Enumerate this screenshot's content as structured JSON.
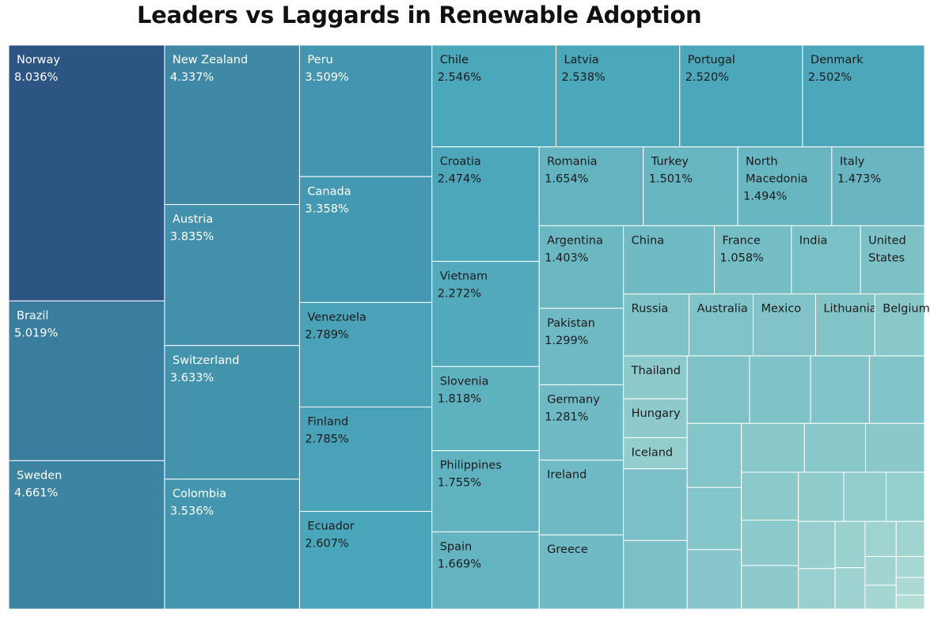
{
  "chart_data": {
    "type": "treemap",
    "title": "Leaders vs Laggards in Renewable Adoption",
    "color_scale": {
      "low": "#b1ddd5",
      "mid": "#4aa6ba",
      "high": "#2c5584"
    },
    "items": [
      {
        "name": "Norway",
        "value": 8.036,
        "value_label": "8.036%",
        "show_value": true
      },
      {
        "name": "Brazil",
        "value": 5.019,
        "value_label": "5.019%",
        "show_value": true
      },
      {
        "name": "Sweden",
        "value": 4.661,
        "value_label": "4.661%",
        "show_value": true
      },
      {
        "name": "New Zealand",
        "value": 4.337,
        "value_label": "4.337%",
        "show_value": true
      },
      {
        "name": "Austria",
        "value": 3.835,
        "value_label": "3.835%",
        "show_value": true
      },
      {
        "name": "Switzerland",
        "value": 3.633,
        "value_label": "3.633%",
        "show_value": true
      },
      {
        "name": "Colombia",
        "value": 3.536,
        "value_label": "3.536%",
        "show_value": true
      },
      {
        "name": "Peru",
        "value": 3.509,
        "value_label": "3.509%",
        "show_value": true
      },
      {
        "name": "Canada",
        "value": 3.358,
        "value_label": "3.358%",
        "show_value": true
      },
      {
        "name": "Venezuela",
        "value": 2.789,
        "value_label": "2.789%",
        "show_value": true
      },
      {
        "name": "Finland",
        "value": 2.785,
        "value_label": "2.785%",
        "show_value": true
      },
      {
        "name": "Ecuador",
        "value": 2.607,
        "value_label": "2.607%",
        "show_value": true
      },
      {
        "name": "Chile",
        "value": 2.546,
        "value_label": "2.546%",
        "show_value": true
      },
      {
        "name": "Latvia",
        "value": 2.538,
        "value_label": "2.538%",
        "show_value": true
      },
      {
        "name": "Portugal",
        "value": 2.52,
        "value_label": "2.520%",
        "show_value": true
      },
      {
        "name": "Denmark",
        "value": 2.502,
        "value_label": "2.502%",
        "show_value": true
      },
      {
        "name": "Croatia",
        "value": 2.474,
        "value_label": "2.474%",
        "show_value": true
      },
      {
        "name": "Vietnam",
        "value": 2.272,
        "value_label": "2.272%",
        "show_value": true
      },
      {
        "name": "Slovenia",
        "value": 1.818,
        "value_label": "1.818%",
        "show_value": true
      },
      {
        "name": "Philippines",
        "value": 1.755,
        "value_label": "1.755%",
        "show_value": true
      },
      {
        "name": "Spain",
        "value": 1.669,
        "value_label": "1.669%",
        "show_value": true
      },
      {
        "name": "Romania",
        "value": 1.654,
        "value_label": "1.654%",
        "show_value": true
      },
      {
        "name": "Turkey",
        "value": 1.501,
        "value_label": "1.501%",
        "show_value": true
      },
      {
        "name": "North Macedonia",
        "lines": [
          "North",
          "Macedonia"
        ],
        "value": 1.494,
        "value_label": "1.494%",
        "show_value": true
      },
      {
        "name": "Italy",
        "value": 1.473,
        "value_label": "1.473%",
        "show_value": true
      },
      {
        "name": "Argentina",
        "value": 1.403,
        "value_label": "1.403%",
        "show_value": true
      },
      {
        "name": "Pakistan",
        "value": 1.299,
        "value_label": "1.299%",
        "show_value": true
      },
      {
        "name": "Germany",
        "value": 1.281,
        "value_label": "1.281%",
        "show_value": true
      },
      {
        "name": "Ireland",
        "value": 1.27,
        "show_value": false
      },
      {
        "name": "Greece",
        "value": 1.26,
        "show_value": false
      },
      {
        "name": "China",
        "value": 1.25,
        "show_value": false
      },
      {
        "name": "France",
        "value": 1.058,
        "value_label": "1.058%",
        "show_value": true
      },
      {
        "name": "India",
        "value": 0.95,
        "show_value": false
      },
      {
        "name": "United States",
        "lines": [
          "United",
          "States"
        ],
        "value": 0.88,
        "show_value": false
      },
      {
        "name": "Russia",
        "value": 0.82,
        "show_value": false
      },
      {
        "name": "Australia",
        "value": 0.8,
        "show_value": false
      },
      {
        "name": "Mexico",
        "value": 0.78,
        "show_value": false
      },
      {
        "name": "Lithuania",
        "value": 0.74,
        "show_value": false
      },
      {
        "name": "Belgium",
        "value": 0.62,
        "show_value": false
      },
      {
        "name": "Thailand",
        "value": 0.55,
        "show_value": false
      },
      {
        "name": "Hungary",
        "value": 0.5,
        "show_value": false
      },
      {
        "name": "Iceland",
        "value": 0.4,
        "show_value": false
      },
      {
        "name": "",
        "value": 0.92
      },
      {
        "name": "",
        "value": 0.88
      },
      {
        "name": "",
        "value": 0.85
      },
      {
        "name": "",
        "value": 0.83
      },
      {
        "name": "",
        "value": 0.8
      },
      {
        "name": "",
        "value": 0.75
      },
      {
        "name": "",
        "value": 0.7
      },
      {
        "name": "",
        "value": 0.68
      },
      {
        "name": "",
        "value": 0.65
      },
      {
        "name": "",
        "value": 0.62
      },
      {
        "name": "",
        "value": 0.6
      },
      {
        "name": "",
        "value": 0.58
      },
      {
        "name": "",
        "value": 0.55
      },
      {
        "name": "",
        "value": 0.52
      },
      {
        "name": "",
        "value": 0.5
      },
      {
        "name": "",
        "value": 0.45
      },
      {
        "name": "",
        "value": 0.42
      },
      {
        "name": "",
        "value": 0.38
      },
      {
        "name": "",
        "value": 0.35
      },
      {
        "name": "",
        "value": 0.3
      },
      {
        "name": "",
        "value": 0.28
      },
      {
        "name": "",
        "value": 0.25
      },
      {
        "name": "",
        "value": 0.22
      },
      {
        "name": "",
        "value": 0.2
      },
      {
        "name": "",
        "value": 0.18
      },
      {
        "name": "",
        "value": 0.15
      },
      {
        "name": "",
        "value": 0.12
      },
      {
        "name": "",
        "value": 0.1
      },
      {
        "name": "",
        "value": 0.08
      }
    ]
  }
}
